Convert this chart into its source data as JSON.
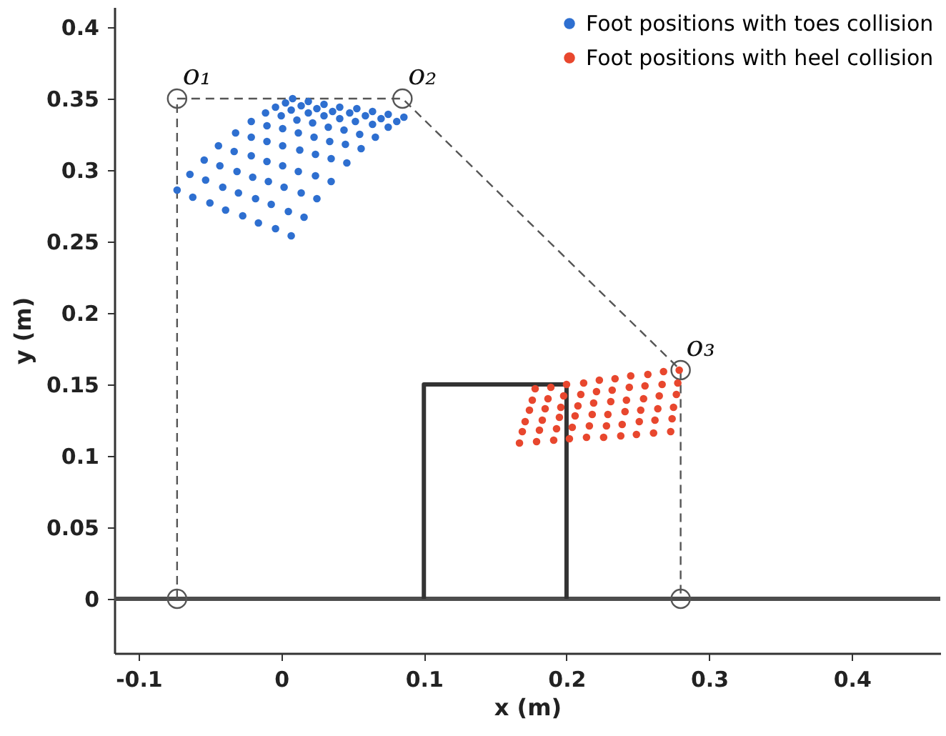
{
  "chart_data": {
    "type": "scatter",
    "xlabel": "x (m)",
    "ylabel": "y (m)",
    "xlim": [
      -0.117,
      0.462
    ],
    "ylim": [
      -0.038,
      0.414
    ],
    "xticks": [
      -0.1,
      0,
      0.1,
      0.2,
      0.3,
      0.4
    ],
    "yticks": [
      0,
      0.05,
      0.1,
      0.15,
      0.2,
      0.25,
      0.3,
      0.35,
      0.4
    ],
    "grid": false,
    "legend": "top right",
    "series": [
      {
        "type": "line",
        "color": "#4d4d4d",
        "line_style": "solid",
        "x": [
          -0.117,
          0.462
        ],
        "values": [
          0,
          0
        ]
      },
      {
        "type": "line",
        "color": "#333333",
        "line_style": "solid",
        "x": [
          0.1,
          0.1,
          0.2,
          0.2
        ],
        "values": [
          0,
          0.15,
          0.15,
          0
        ]
      },
      {
        "type": "line",
        "color": "#555555",
        "line_style": "dashed",
        "marker": "circle",
        "x": [
          -0.073,
          -0.073,
          0.085,
          0.28,
          0.28
        ],
        "values": [
          0,
          0.35,
          0.35,
          0.16,
          0
        ]
      },
      {
        "name": "Foot positions with toes collision",
        "color": "#2e6fd0",
        "marker": "circle",
        "x": [
          -0.073,
          -0.062,
          -0.05,
          -0.039,
          -0.027,
          -0.016,
          -0.004,
          0.007,
          -0.064,
          -0.053,
          -0.041,
          -0.03,
          -0.018,
          -0.007,
          0.005,
          0.016,
          -0.054,
          -0.043,
          -0.031,
          -0.02,
          -0.009,
          0.002,
          0.014,
          0.025,
          -0.044,
          -0.033,
          -0.021,
          -0.01,
          0.001,
          0.012,
          0.024,
          0.035,
          -0.032,
          -0.021,
          -0.01,
          0.001,
          0.013,
          0.024,
          0.035,
          0.046,
          -0.021,
          -0.01,
          0.001,
          0.012,
          0.023,
          0.034,
          0.045,
          0.056,
          -0.011,
          0,
          0.011,
          0.022,
          0.033,
          0.044,
          0.055,
          0.066,
          -0.004,
          0.007,
          0.019,
          0.03,
          0.041,
          0.052,
          0.064,
          0.075,
          0.003,
          0.014,
          0.025,
          0.036,
          0.048,
          0.059,
          0.07,
          0.081,
          0.008,
          0.019,
          0.03,
          0.041,
          0.053,
          0.064,
          0.075,
          0.086
        ],
        "values": [
          0.286,
          0.281,
          0.277,
          0.272,
          0.268,
          0.263,
          0.259,
          0.254,
          0.297,
          0.293,
          0.288,
          0.284,
          0.28,
          0.276,
          0.271,
          0.267,
          0.307,
          0.303,
          0.299,
          0.295,
          0.292,
          0.288,
          0.284,
          0.28,
          0.317,
          0.313,
          0.31,
          0.306,
          0.303,
          0.299,
          0.296,
          0.292,
          0.326,
          0.323,
          0.32,
          0.317,
          0.314,
          0.311,
          0.308,
          0.305,
          0.334,
          0.331,
          0.329,
          0.326,
          0.323,
          0.32,
          0.318,
          0.315,
          0.34,
          0.338,
          0.335,
          0.333,
          0.33,
          0.328,
          0.325,
          0.323,
          0.344,
          0.342,
          0.34,
          0.338,
          0.336,
          0.334,
          0.332,
          0.33,
          0.347,
          0.345,
          0.343,
          0.341,
          0.34,
          0.338,
          0.336,
          0.334,
          0.35,
          0.348,
          0.346,
          0.344,
          0.343,
          0.341,
          0.339,
          0.337
        ]
      },
      {
        "name": "Foot positions with heel collision",
        "color": "#e8472e",
        "marker": "circle",
        "x": [
          0.178,
          0.189,
          0.2,
          0.212,
          0.223,
          0.234,
          0.245,
          0.257,
          0.268,
          0.279,
          0.176,
          0.187,
          0.198,
          0.21,
          0.221,
          0.232,
          0.244,
          0.255,
          0.267,
          0.278,
          0.174,
          0.185,
          0.196,
          0.208,
          0.219,
          0.231,
          0.242,
          0.254,
          0.265,
          0.277,
          0.171,
          0.183,
          0.195,
          0.206,
          0.218,
          0.229,
          0.241,
          0.252,
          0.264,
          0.275,
          0.169,
          0.181,
          0.193,
          0.204,
          0.216,
          0.228,
          0.239,
          0.251,
          0.262,
          0.274,
          0.167,
          0.179,
          0.191,
          0.202,
          0.214,
          0.226,
          0.238,
          0.249,
          0.261,
          0.273
        ],
        "values": [
          0.147,
          0.148,
          0.15,
          0.151,
          0.153,
          0.154,
          0.156,
          0.157,
          0.159,
          0.16,
          0.139,
          0.14,
          0.142,
          0.143,
          0.145,
          0.146,
          0.148,
          0.149,
          0.15,
          0.151,
          0.132,
          0.133,
          0.134,
          0.135,
          0.137,
          0.138,
          0.139,
          0.14,
          0.142,
          0.143,
          0.124,
          0.125,
          0.127,
          0.128,
          0.129,
          0.129,
          0.131,
          0.132,
          0.133,
          0.134,
          0.117,
          0.118,
          0.119,
          0.12,
          0.121,
          0.121,
          0.122,
          0.124,
          0.125,
          0.126,
          0.109,
          0.11,
          0.111,
          0.112,
          0.113,
          0.113,
          0.114,
          0.115,
          0.116,
          0.117
        ]
      }
    ],
    "annotations": [
      {
        "text": "o₁",
        "x": -0.073,
        "y": 0.35
      },
      {
        "text": "o₂",
        "x": 0.085,
        "y": 0.35
      },
      {
        "text": "o₃",
        "x": 0.28,
        "y": 0.16
      }
    ]
  }
}
